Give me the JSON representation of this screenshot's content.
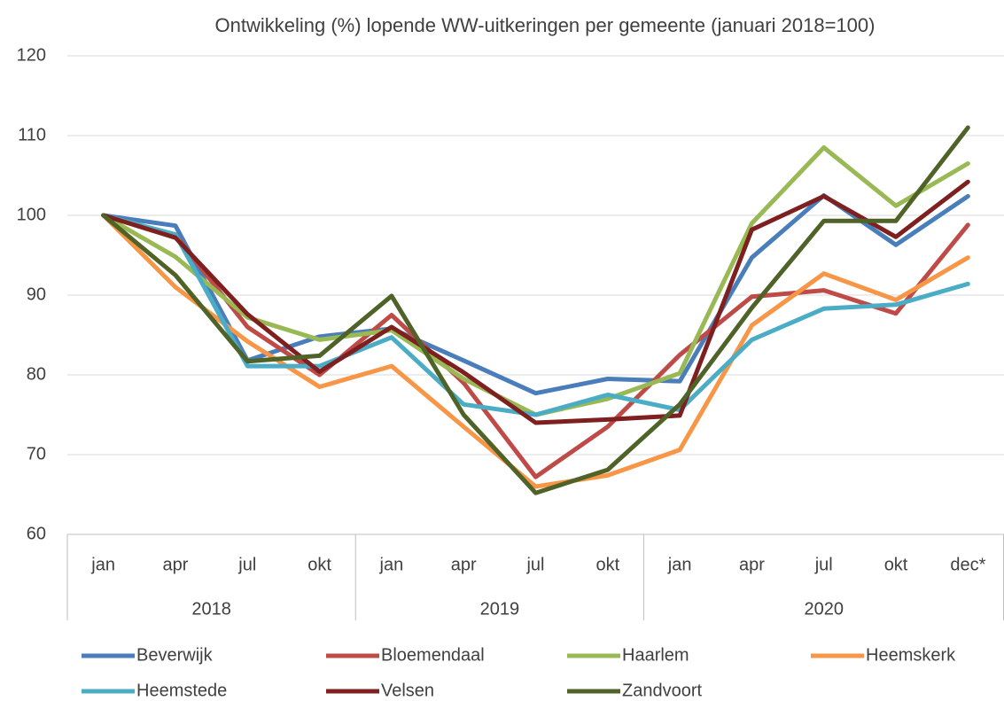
{
  "chart_data": {
    "type": "line",
    "title": "Ontwikkeling (%) lopende WW-uitkeringen per gemeente (januari 2018=100)",
    "categories": [
      "jan",
      "apr",
      "jul",
      "okt",
      "jan",
      "apr",
      "jul",
      "okt",
      "jan",
      "apr",
      "jul",
      "okt",
      "dec*"
    ],
    "category_groups": [
      {
        "label": "2018",
        "count": 4
      },
      {
        "label": "2019",
        "count": 4
      },
      {
        "label": "2020",
        "count": 5
      }
    ],
    "ylim": [
      60,
      120
    ],
    "yticks": [
      60,
      70,
      80,
      90,
      100,
      110,
      120
    ],
    "grid": true,
    "legend": "bottom",
    "series": [
      {
        "name": "Beverwijk",
        "color": "#4a7ebb",
        "values": [
          100,
          98.7,
          81.8,
          84.8,
          85.8,
          81.8,
          77.7,
          79.5,
          79.2,
          94.7,
          102.5,
          96.3,
          102.4
        ]
      },
      {
        "name": "Bloemendaal",
        "color": "#be4b48",
        "values": [
          100,
          97.5,
          86.0,
          80.0,
          87.5,
          79.0,
          67.2,
          73.5,
          82.5,
          89.8,
          90.6,
          87.7,
          98.8
        ]
      },
      {
        "name": "Haarlem",
        "color": "#98b954",
        "values": [
          100,
          94.8,
          87.2,
          84.4,
          85.6,
          79.5,
          75.0,
          77.0,
          80.2,
          99.0,
          108.5,
          101.2,
          106.5
        ]
      },
      {
        "name": "Heemskerk",
        "color": "#f79646",
        "values": [
          100,
          91.0,
          84.2,
          78.5,
          81.1,
          73.5,
          66.0,
          67.4,
          70.6,
          86.2,
          92.7,
          89.4,
          94.7
        ]
      },
      {
        "name": "Heemstede",
        "color": "#4bacc6",
        "values": [
          100,
          97.6,
          81.1,
          81.1,
          84.7,
          76.3,
          75.0,
          77.5,
          75.6,
          84.4,
          88.3,
          88.8,
          91.4
        ]
      },
      {
        "name": "Velsen",
        "color": "#7f2020",
        "values": [
          100,
          97.2,
          87.6,
          80.4,
          86.0,
          80.3,
          74.0,
          74.4,
          74.9,
          98.2,
          102.4,
          97.3,
          104.2
        ]
      },
      {
        "name": "Zandvoort",
        "color": "#4f6228",
        "values": [
          100,
          92.5,
          81.7,
          82.4,
          89.9,
          75.0,
          65.2,
          68.1,
          76.3,
          88.4,
          99.3,
          99.3,
          111.0
        ]
      }
    ]
  }
}
